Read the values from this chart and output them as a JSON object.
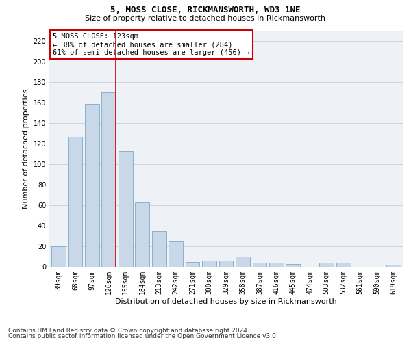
{
  "title1": "5, MOSS CLOSE, RICKMANSWORTH, WD3 1NE",
  "title2": "Size of property relative to detached houses in Rickmansworth",
  "xlabel": "Distribution of detached houses by size in Rickmansworth",
  "ylabel": "Number of detached properties",
  "categories": [
    "39sqm",
    "68sqm",
    "97sqm",
    "126sqm",
    "155sqm",
    "184sqm",
    "213sqm",
    "242sqm",
    "271sqm",
    "300sqm",
    "329sqm",
    "358sqm",
    "387sqm",
    "416sqm",
    "445sqm",
    "474sqm",
    "503sqm",
    "532sqm",
    "561sqm",
    "590sqm",
    "619sqm"
  ],
  "values": [
    20,
    127,
    159,
    170,
    113,
    63,
    35,
    25,
    5,
    6,
    6,
    10,
    4,
    4,
    3,
    0,
    4,
    4,
    0,
    0,
    2
  ],
  "bar_color": "#c8d8e8",
  "bar_edge_color": "#7aaac8",
  "highlight_bar_index": 3,
  "highlight_line_color": "#cc0000",
  "annotation_text": "5 MOSS CLOSE: 123sqm\n← 38% of detached houses are smaller (284)\n61% of semi-detached houses are larger (456) →",
  "annotation_box_color": "#ffffff",
  "annotation_box_edge_color": "#cc0000",
  "ylim": [
    0,
    230
  ],
  "yticks": [
    0,
    20,
    40,
    60,
    80,
    100,
    120,
    140,
    160,
    180,
    200,
    220
  ],
  "grid_color": "#c8c8c8",
  "background_color": "#eef2f6",
  "footnote1": "Contains HM Land Registry data © Crown copyright and database right 2024.",
  "footnote2": "Contains public sector information licensed under the Open Government Licence v3.0.",
  "title1_fontsize": 9,
  "title2_fontsize": 8,
  "xlabel_fontsize": 8,
  "ylabel_fontsize": 8,
  "tick_fontsize": 7,
  "annotation_fontsize": 7.5,
  "footnote_fontsize": 6.5
}
